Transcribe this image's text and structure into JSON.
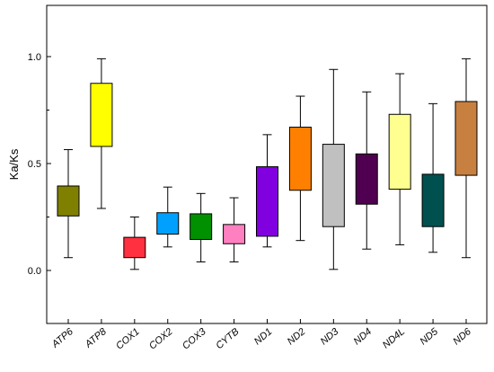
{
  "chart_data": {
    "type": "box",
    "ylabel": "Ka/Ks",
    "xlabel": "",
    "ylim": [
      -0.27,
      1.21
    ],
    "yticks": [
      "0.0",
      "0.5",
      "1.0"
    ],
    "ytick_values": [
      0.0,
      0.5,
      1.0
    ],
    "grid": false,
    "legend": "none",
    "categories": [
      "ATP6",
      "ATP8",
      "COX1",
      "COX2",
      "COX3",
      "CYTB",
      "ND1",
      "ND2",
      "ND3",
      "ND4",
      "ND4L",
      "ND5",
      "ND6"
    ],
    "boxes": [
      {
        "label": "ATP6",
        "whisker_low": 0.06,
        "q1": 0.255,
        "q3": 0.395,
        "whisker_high": 0.565,
        "color": "#808000"
      },
      {
        "label": "ATP8",
        "whisker_low": 0.29,
        "q1": 0.58,
        "q3": 0.875,
        "whisker_high": 0.99,
        "color": "#FFFF00"
      },
      {
        "label": "COX1",
        "whisker_low": 0.005,
        "q1": 0.06,
        "q3": 0.155,
        "whisker_high": 0.25,
        "color": "#FF3040"
      },
      {
        "label": "COX2",
        "whisker_low": 0.11,
        "q1": 0.17,
        "q3": 0.27,
        "whisker_high": 0.39,
        "color": "#00A0FF"
      },
      {
        "label": "COX3",
        "whisker_low": 0.04,
        "q1": 0.145,
        "q3": 0.265,
        "whisker_high": 0.36,
        "color": "#009000"
      },
      {
        "label": "CYTB",
        "whisker_low": 0.04,
        "q1": 0.125,
        "q3": 0.215,
        "whisker_high": 0.34,
        "color": "#FF80C0"
      },
      {
        "label": "ND1",
        "whisker_low": 0.11,
        "q1": 0.16,
        "q3": 0.485,
        "whisker_high": 0.635,
        "color": "#8000E0"
      },
      {
        "label": "ND2",
        "whisker_low": 0.14,
        "q1": 0.375,
        "q3": 0.67,
        "whisker_high": 0.815,
        "color": "#FF8000"
      },
      {
        "label": "ND3",
        "whisker_low": 0.005,
        "q1": 0.205,
        "q3": 0.59,
        "whisker_high": 0.94,
        "color": "#C0C0C0"
      },
      {
        "label": "ND4",
        "whisker_low": 0.1,
        "q1": 0.31,
        "q3": 0.545,
        "whisker_high": 0.835,
        "color": "#500050"
      },
      {
        "label": "ND4L",
        "whisker_low": 0.12,
        "q1": 0.38,
        "q3": 0.73,
        "whisker_high": 0.92,
        "color": "#FFFF90"
      },
      {
        "label": "ND5",
        "whisker_low": 0.085,
        "q1": 0.205,
        "q3": 0.45,
        "whisker_high": 0.78,
        "color": "#005050"
      },
      {
        "label": "ND6",
        "whisker_low": 0.06,
        "q1": 0.445,
        "q3": 0.79,
        "whisker_high": 0.99,
        "color": "#C88040"
      }
    ]
  }
}
